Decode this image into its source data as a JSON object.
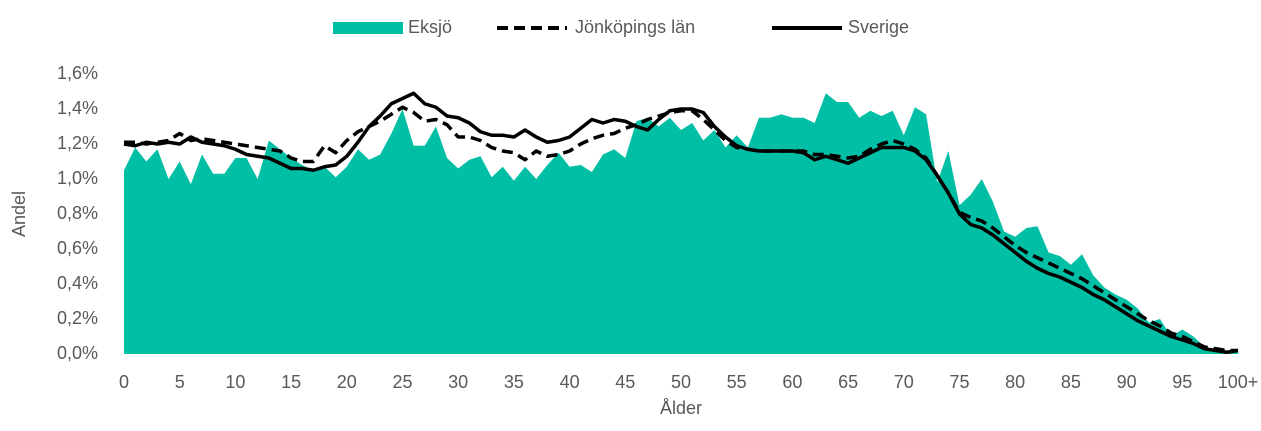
{
  "chart_data": {
    "type": "area-line",
    "xlabel": "Ålder",
    "ylabel": "Andel",
    "x": [
      0,
      1,
      2,
      3,
      4,
      5,
      6,
      7,
      8,
      9,
      10,
      11,
      12,
      13,
      14,
      15,
      16,
      17,
      18,
      19,
      20,
      21,
      22,
      23,
      24,
      25,
      26,
      27,
      28,
      29,
      30,
      31,
      32,
      33,
      34,
      35,
      36,
      37,
      38,
      39,
      40,
      41,
      42,
      43,
      44,
      45,
      46,
      47,
      48,
      49,
      50,
      51,
      52,
      53,
      54,
      55,
      56,
      57,
      58,
      59,
      60,
      61,
      62,
      63,
      64,
      65,
      66,
      67,
      68,
      69,
      70,
      71,
      72,
      73,
      74,
      75,
      76,
      77,
      78,
      79,
      80,
      81,
      82,
      83,
      84,
      85,
      86,
      87,
      88,
      89,
      90,
      91,
      92,
      93,
      94,
      95,
      96,
      97,
      98,
      99,
      100
    ],
    "xlim": [
      0,
      100
    ],
    "xticks": [
      0,
      5,
      10,
      15,
      20,
      25,
      30,
      35,
      40,
      45,
      50,
      55,
      60,
      65,
      70,
      75,
      80,
      85,
      90,
      95,
      {
        "value": 100,
        "label": "100+"
      }
    ],
    "ylim": [
      0,
      1.6
    ],
    "yticks": [
      {
        "value": 0,
        "label": "0,0%"
      },
      {
        "value": 0.2,
        "label": "0,2%"
      },
      {
        "value": 0.4,
        "label": "0,4%"
      },
      {
        "value": 0.6,
        "label": "0,6%"
      },
      {
        "value": 0.8,
        "label": "0,8%"
      },
      {
        "value": 1.0,
        "label": "1,0%"
      },
      {
        "value": 1.2,
        "label": "1,2%"
      },
      {
        "value": 1.4,
        "label": "1,4%"
      },
      {
        "value": 1.6,
        "label": "1,6%"
      }
    ],
    "grid": false,
    "legend": "top",
    "series": [
      {
        "name": "Eksjö",
        "type": "area",
        "color": "#00bfa5",
        "values": [
          1.05,
          1.18,
          1.1,
          1.17,
          1.0,
          1.1,
          0.97,
          1.14,
          1.03,
          1.03,
          1.12,
          1.12,
          1.0,
          1.22,
          1.17,
          1.12,
          1.08,
          1.05,
          1.07,
          1.01,
          1.07,
          1.17,
          1.11,
          1.14,
          1.26,
          1.4,
          1.19,
          1.19,
          1.3,
          1.12,
          1.06,
          1.11,
          1.13,
          1.01,
          1.07,
          0.99,
          1.07,
          1.0,
          1.08,
          1.15,
          1.07,
          1.08,
          1.04,
          1.14,
          1.17,
          1.12,
          1.33,
          1.35,
          1.3,
          1.35,
          1.28,
          1.32,
          1.22,
          1.28,
          1.18,
          1.25,
          1.18,
          1.35,
          1.35,
          1.37,
          1.35,
          1.35,
          1.32,
          1.49,
          1.44,
          1.44,
          1.35,
          1.39,
          1.36,
          1.39,
          1.25,
          1.41,
          1.37,
          0.98,
          1.16,
          0.85,
          0.91,
          1.0,
          0.87,
          0.7,
          0.67,
          0.72,
          0.73,
          0.58,
          0.56,
          0.51,
          0.57,
          0.45,
          0.38,
          0.34,
          0.31,
          0.26,
          0.18,
          0.2,
          0.1,
          0.14,
          0.1,
          0.04,
          0.02,
          0.01,
          0.02
        ]
      },
      {
        "name": "Jönköpings län",
        "type": "line",
        "dashed": true,
        "color": "#000000",
        "values": [
          1.21,
          1.21,
          1.2,
          1.21,
          1.22,
          1.26,
          1.22,
          1.23,
          1.22,
          1.21,
          1.2,
          1.19,
          1.18,
          1.17,
          1.16,
          1.12,
          1.1,
          1.1,
          1.19,
          1.15,
          1.22,
          1.27,
          1.3,
          1.33,
          1.37,
          1.41,
          1.38,
          1.33,
          1.34,
          1.31,
          1.24,
          1.24,
          1.22,
          1.18,
          1.16,
          1.15,
          1.11,
          1.16,
          1.13,
          1.14,
          1.16,
          1.2,
          1.23,
          1.25,
          1.26,
          1.29,
          1.31,
          1.34,
          1.36,
          1.38,
          1.39,
          1.39,
          1.34,
          1.28,
          1.22,
          1.18,
          1.17,
          1.16,
          1.16,
          1.16,
          1.16,
          1.16,
          1.14,
          1.14,
          1.13,
          1.12,
          1.13,
          1.17,
          1.2,
          1.22,
          1.2,
          1.17,
          1.12,
          1.02,
          0.92,
          0.81,
          0.78,
          0.76,
          0.72,
          0.67,
          0.62,
          0.58,
          0.55,
          0.52,
          0.49,
          0.46,
          0.43,
          0.39,
          0.35,
          0.31,
          0.27,
          0.23,
          0.19,
          0.16,
          0.12,
          0.1,
          0.07,
          0.04,
          0.03,
          0.02,
          0.02
        ]
      },
      {
        "name": "Sverige",
        "type": "line",
        "dashed": false,
        "color": "#000000",
        "values": [
          1.2,
          1.19,
          1.21,
          1.2,
          1.21,
          1.2,
          1.24,
          1.21,
          1.2,
          1.19,
          1.17,
          1.14,
          1.13,
          1.12,
          1.09,
          1.06,
          1.06,
          1.05,
          1.07,
          1.08,
          1.13,
          1.21,
          1.3,
          1.36,
          1.43,
          1.46,
          1.49,
          1.43,
          1.41,
          1.36,
          1.35,
          1.32,
          1.27,
          1.25,
          1.25,
          1.24,
          1.28,
          1.24,
          1.21,
          1.22,
          1.24,
          1.29,
          1.34,
          1.32,
          1.34,
          1.33,
          1.3,
          1.28,
          1.34,
          1.39,
          1.4,
          1.4,
          1.38,
          1.3,
          1.24,
          1.19,
          1.17,
          1.16,
          1.16,
          1.16,
          1.16,
          1.15,
          1.11,
          1.13,
          1.11,
          1.09,
          1.12,
          1.15,
          1.18,
          1.18,
          1.18,
          1.16,
          1.11,
          1.02,
          0.92,
          0.8,
          0.74,
          0.72,
          0.68,
          0.63,
          0.58,
          0.53,
          0.49,
          0.46,
          0.44,
          0.41,
          0.38,
          0.34,
          0.31,
          0.27,
          0.23,
          0.19,
          0.16,
          0.13,
          0.1,
          0.08,
          0.06,
          0.03,
          0.02,
          0.01,
          0.02
        ]
      }
    ]
  }
}
